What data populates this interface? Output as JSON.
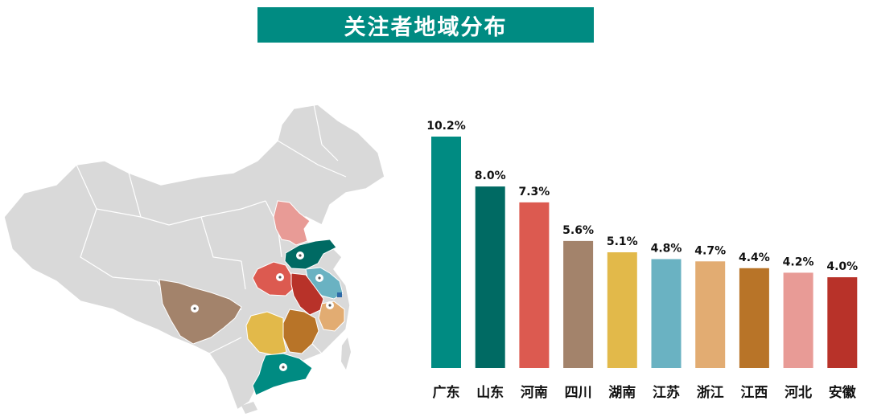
{
  "title": "关注者地域分布",
  "map": {
    "highlighted_regions": [
      "广东",
      "山东",
      "河南",
      "四川",
      "湖南",
      "江苏",
      "浙江",
      "江西",
      "河北",
      "安徽"
    ]
  },
  "chart_data": {
    "type": "bar",
    "categories": [
      "广东",
      "山东",
      "河南",
      "四川",
      "湖南",
      "江苏",
      "浙江",
      "江西",
      "河北",
      "安徽"
    ],
    "values": [
      10.2,
      8.0,
      7.3,
      5.6,
      5.1,
      4.8,
      4.7,
      4.4,
      4.2,
      4.0
    ],
    "value_labels": [
      "10.2%",
      "8.0%",
      "7.3%",
      "5.6%",
      "5.1%",
      "4.8%",
      "4.7%",
      "4.4%",
      "4.2%",
      "4.0%"
    ],
    "colors": [
      "#008b82",
      "#006a63",
      "#dc5a50",
      "#a3836b",
      "#e2b94a",
      "#6ab2c2",
      "#e2ac72",
      "#b87428",
      "#e89b96",
      "#b83229"
    ],
    "ylim": [
      0,
      10.2
    ],
    "title": "",
    "xlabel": "",
    "ylabel": "",
    "grid": false
  }
}
